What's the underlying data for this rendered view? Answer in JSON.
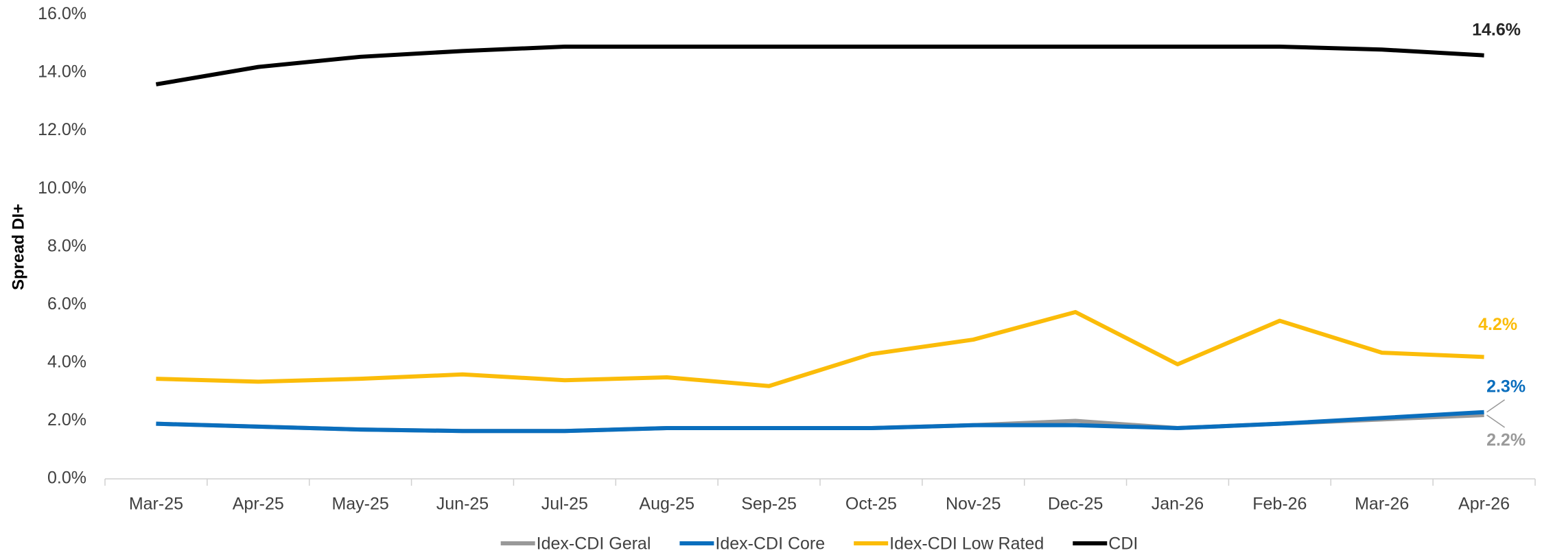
{
  "chart_data": {
    "type": "line",
    "ylabel": "Spread DI+",
    "categories": [
      "Mar-25",
      "Apr-25",
      "May-25",
      "Jun-25",
      "Jul-25",
      "Aug-25",
      "Sep-25",
      "Oct-25",
      "Nov-25",
      "Dec-25",
      "Jan-26",
      "Feb-26",
      "Mar-26",
      "Apr-26"
    ],
    "series": [
      {
        "name": "Idex-CDI Geral",
        "color": "#999999",
        "values": [
          1.9,
          1.8,
          1.7,
          1.65,
          1.65,
          1.75,
          1.75,
          1.75,
          1.85,
          2.0,
          1.75,
          1.9,
          2.05,
          2.2
        ],
        "value_labels": [
          null,
          null,
          null,
          null,
          null,
          null,
          null,
          null,
          null,
          null,
          null,
          null,
          null,
          "2.2%"
        ]
      },
      {
        "name": "Idex-CDI Core",
        "color": "#0a6ebd",
        "values": [
          1.9,
          1.8,
          1.7,
          1.65,
          1.65,
          1.75,
          1.75,
          1.75,
          1.85,
          1.85,
          1.75,
          1.9,
          2.1,
          2.3
        ],
        "value_labels": [
          null,
          null,
          null,
          null,
          null,
          null,
          null,
          null,
          null,
          null,
          null,
          null,
          null,
          "2.3%"
        ]
      },
      {
        "name": "Idex-CDI Low Rated",
        "color": "#fbbc09",
        "values": [
          3.45,
          3.35,
          3.45,
          3.6,
          3.4,
          3.5,
          3.2,
          4.3,
          4.8,
          5.75,
          3.95,
          5.45,
          4.35,
          4.2
        ],
        "value_labels": [
          null,
          null,
          null,
          null,
          null,
          null,
          null,
          null,
          null,
          null,
          null,
          null,
          null,
          "4.2%"
        ]
      },
      {
        "name": "CDI",
        "color": "#000000",
        "values": [
          13.6,
          14.2,
          14.55,
          14.75,
          14.9,
          14.9,
          14.9,
          14.9,
          14.9,
          14.9,
          14.9,
          14.9,
          14.8,
          14.6
        ],
        "value_labels": [
          null,
          null,
          null,
          null,
          null,
          null,
          null,
          null,
          null,
          null,
          null,
          null,
          null,
          "14.6%"
        ]
      }
    ],
    "ylim": [
      0,
      16
    ],
    "yticks": [
      {
        "value": 0,
        "label": "0.0%"
      },
      {
        "value": 2,
        "label": "2.0%"
      },
      {
        "value": 4,
        "label": "4.0%"
      },
      {
        "value": 6,
        "label": "6.0%"
      },
      {
        "value": 8,
        "label": "8.0%"
      },
      {
        "value": 10,
        "label": "10.0%"
      },
      {
        "value": 12,
        "label": "12.0%"
      },
      {
        "value": 14,
        "label": "14.0%"
      },
      {
        "value": 16,
        "label": "16.0%"
      }
    ],
    "grid": false,
    "legend": "bottom"
  }
}
